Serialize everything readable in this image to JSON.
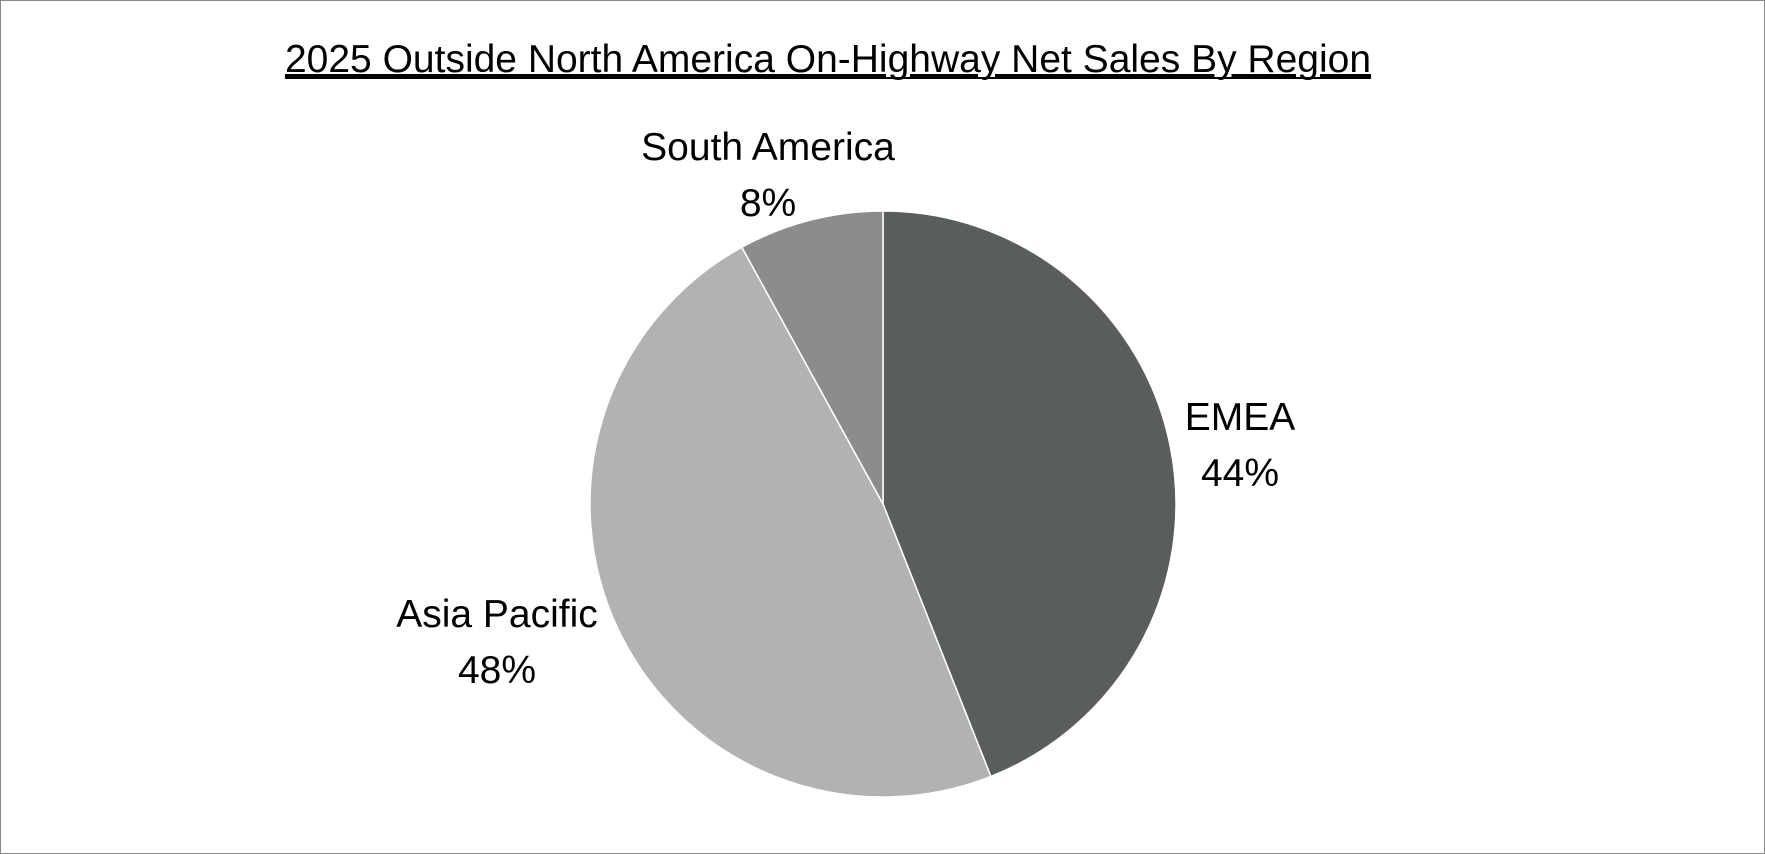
{
  "chart_data": {
    "type": "pie",
    "title": "2025 Outside North America On-Highway Net Sales By Region",
    "slices": [
      {
        "label": "EMEA",
        "value": 44,
        "value_label": "44%",
        "color": "#5a5d5d"
      },
      {
        "label": "Asia Pacific",
        "value": 48,
        "value_label": "48%",
        "color": "#b2b2b2"
      },
      {
        "label": "South America",
        "value": 8,
        "value_label": "8%",
        "color": "#8c8c8a"
      }
    ],
    "start_angle": "12 o'clock",
    "direction": "clockwise",
    "legend": "none"
  }
}
